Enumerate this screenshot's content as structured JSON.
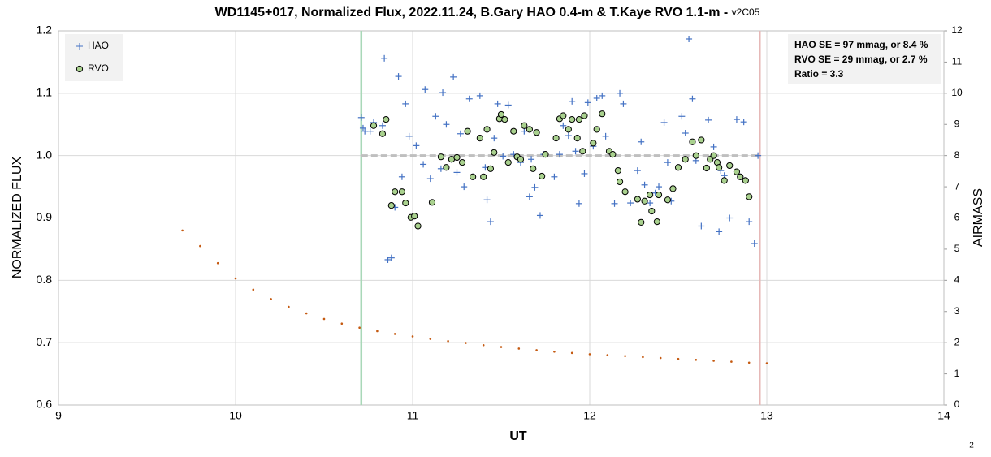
{
  "chart_data": {
    "type": "scatter",
    "title": "WD1145+017, Normalized Flux, 2022.11.24, B.Gary HAO 0.4-m & T.Kaye RVO 1.1-m - ",
    "subtitle": "v2C05",
    "x_label": "UT",
    "y_label": "NORMALIZED FLUX",
    "y2_label": "AIRMASS",
    "page_number": "2",
    "annotations": [
      "HAO SE = 97 mmag, or 8.4 %",
      "RVO SE = 29 mmag, or 2.7 %",
      "Ratio = 3.3"
    ],
    "xlim": [
      9,
      14
    ],
    "xticks": [
      9,
      10,
      11,
      12,
      13,
      14
    ],
    "ylim": [
      0.6,
      1.2
    ],
    "yticks": [
      0.6,
      0.7,
      0.8,
      0.9,
      {
        "value": 1,
        "label": "1.0"
      },
      1.1,
      1.2
    ],
    "y2lim": [
      0,
      12
    ],
    "y2ticks": [
      0,
      1,
      2,
      3,
      4,
      5,
      6,
      7,
      8,
      9,
      10,
      11,
      12
    ],
    "grid": true,
    "legend": "upper left",
    "vertical_lines": [
      {
        "x": 10.71,
        "color": "#a9d8b8"
      },
      {
        "x": 12.96,
        "color": "#e6b8b7"
      }
    ],
    "reference_line": {
      "y": 1,
      "x": [
        10.71,
        12.96
      ],
      "color": "#bfbfbf"
    },
    "series": [
      {
        "name": "HAO",
        "color": "#4472c4",
        "marker": "plus",
        "x": [
          10.71,
          10.72,
          10.73,
          10.76,
          10.78,
          10.83,
          10.84,
          10.86,
          10.88,
          10.9,
          10.92,
          10.94,
          10.96,
          10.98,
          11.02,
          11.06,
          11.07,
          11.1,
          11.13,
          11.16,
          11.17,
          11.19,
          11.22,
          11.23,
          11.25,
          11.27,
          11.29,
          11.32,
          11.34,
          11.38,
          11.41,
          11.42,
          11.44,
          11.46,
          11.48,
          11.51,
          11.54,
          11.57,
          11.61,
          11.63,
          11.66,
          11.67,
          11.69,
          11.72,
          11.74,
          11.8,
          11.83,
          11.85,
          11.88,
          11.9,
          11.92,
          11.94,
          11.97,
          11.99,
          12.02,
          12.04,
          12.07,
          12.09,
          12.12,
          12.14,
          12.17,
          12.19,
          12.23,
          12.27,
          12.29,
          12.31,
          12.34,
          12.37,
          12.39,
          12.42,
          12.44,
          12.46,
          12.52,
          12.54,
          12.56,
          12.58,
          12.6,
          12.63,
          12.67,
          12.7,
          12.73,
          12.74,
          12.76,
          12.79,
          12.83,
          12.85,
          12.87,
          12.9,
          12.93,
          12.95
        ],
        "values": [
          1.061,
          1.044,
          1.039,
          1.039,
          1.053,
          1.048,
          1.156,
          0.833,
          0.836,
          0.917,
          1.127,
          0.966,
          1.083,
          1.031,
          1.016,
          0.986,
          1.106,
          0.963,
          1.063,
          0.979,
          1.101,
          1.05,
          0.994,
          1.126,
          0.973,
          1.035,
          0.95,
          1.091,
          0.966,
          1.096,
          0.981,
          0.929,
          0.894,
          1.028,
          1.083,
          0.999,
          1.081,
          1.002,
          0.989,
          1.039,
          0.934,
          0.994,
          0.949,
          0.904,
          1.002,
          0.966,
          1.002,
          1.048,
          1.032,
          1.087,
          1.007,
          0.923,
          0.971,
          1.085,
          1.015,
          1.092,
          1.096,
          1.031,
          1.005,
          0.923,
          1.1,
          1.083,
          0.924,
          0.976,
          1.022,
          0.953,
          0.924,
          0.94,
          0.95,
          1.053,
          0.989,
          0.927,
          1.063,
          1.036,
          1.187,
          1.091,
          0.992,
          0.887,
          1.057,
          1.014,
          0.878,
          0.976,
          0.968,
          0.9,
          1.058,
          0.966,
          1.054,
          0.894,
          0.859,
          1.0
        ]
      },
      {
        "name": "RVO",
        "color": "#a9d18e",
        "marker": "circle",
        "x": [
          10.78,
          10.83,
          10.85,
          10.88,
          10.9,
          10.94,
          10.96,
          10.99,
          11.01,
          11.03,
          11.11,
          11.16,
          11.19,
          11.22,
          11.25,
          11.28,
          11.31,
          11.34,
          11.38,
          11.4,
          11.42,
          11.44,
          11.46,
          11.49,
          11.5,
          11.52,
          11.54,
          11.57,
          11.59,
          11.61,
          11.63,
          11.66,
          11.68,
          11.7,
          11.73,
          11.75,
          11.81,
          11.83,
          11.85,
          11.88,
          11.9,
          11.93,
          11.94,
          11.96,
          11.97,
          12.02,
          12.04,
          12.07,
          12.11,
          12.13,
          12.16,
          12.17,
          12.2,
          12.27,
          12.29,
          12.31,
          12.34,
          12.35,
          12.38,
          12.39,
          12.44,
          12.47,
          12.5,
          12.54,
          12.58,
          12.6,
          12.63,
          12.66,
          12.68,
          12.7,
          12.72,
          12.73,
          12.76,
          12.79,
          12.83,
          12.85,
          12.88,
          12.9
        ],
        "values": [
          1.048,
          1.035,
          1.058,
          0.92,
          0.942,
          0.942,
          0.924,
          0.901,
          0.903,
          0.887,
          0.925,
          0.998,
          0.981,
          0.994,
          0.997,
          0.989,
          1.039,
          0.966,
          1.028,
          0.966,
          1.042,
          0.979,
          1.005,
          1.059,
          1.066,
          1.058,
          0.989,
          1.039,
          0.998,
          0.994,
          1.048,
          1.042,
          0.979,
          1.037,
          0.967,
          1.002,
          1.028,
          1.059,
          1.064,
          1.042,
          1.058,
          1.028,
          1.058,
          1.007,
          1.064,
          1.02,
          1.042,
          1.067,
          1.007,
          1.002,
          0.976,
          0.958,
          0.942,
          0.93,
          0.893,
          0.927,
          0.937,
          0.911,
          0.894,
          0.937,
          0.929,
          0.947,
          0.981,
          0.994,
          1.022,
          1.0,
          1.025,
          0.98,
          0.994,
          1.0,
          0.989,
          0.981,
          0.96,
          0.984,
          0.974,
          0.966,
          0.96,
          0.934
        ]
      },
      {
        "color": "#c55a11",
        "marker": "dot",
        "axis": "y2",
        "x": [
          9.7,
          9.8,
          9.9,
          10.0,
          10.1,
          10.2,
          10.3,
          10.4,
          10.5,
          10.6,
          10.7,
          10.8,
          10.9,
          11.0,
          11.1,
          11.2,
          11.3,
          11.4,
          11.5,
          11.6,
          11.7,
          11.8,
          11.9,
          12.0,
          12.1,
          12.2,
          12.3,
          12.4,
          12.5,
          12.6,
          12.7,
          12.8,
          12.9,
          13.0
        ],
        "values": [
          5.6,
          5.1,
          4.55,
          4.06,
          3.7,
          3.4,
          3.15,
          2.94,
          2.76,
          2.61,
          2.48,
          2.37,
          2.28,
          2.2,
          2.12,
          2.05,
          1.99,
          1.92,
          1.86,
          1.81,
          1.76,
          1.71,
          1.67,
          1.63,
          1.6,
          1.57,
          1.54,
          1.51,
          1.48,
          1.45,
          1.42,
          1.39,
          1.36,
          1.34
        ]
      }
    ]
  }
}
